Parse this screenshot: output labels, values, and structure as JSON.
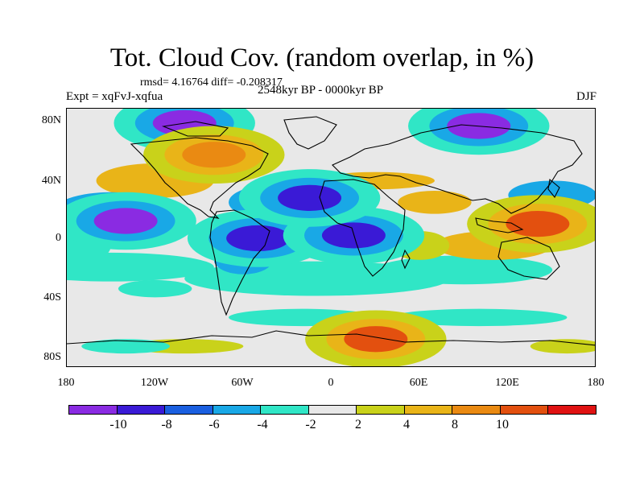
{
  "figure": {
    "title": "Tot. Cloud Cov. (random overlap, in %)",
    "stats": "rmsd= 4.16764 diff= -0.208317",
    "experiment": "Expt = xqFvJ-xqfua",
    "period": "2548kyr BP - 0000kyr BP",
    "season": "DJF"
  },
  "axes": {
    "y_ticks": [
      "80N",
      "40N",
      "0",
      "40S",
      "80S"
    ],
    "x_ticks": [
      "180",
      "120W",
      "60W",
      "0",
      "60E",
      "120E",
      "180"
    ]
  },
  "colorbar": {
    "labels": [
      "-10",
      "-8",
      "-6",
      "-4",
      "-2",
      "2",
      "4",
      "8",
      "10"
    ],
    "colors": [
      "#8a2be2",
      "#3a1ad6",
      "#1a5fe0",
      "#19a8e6",
      "#30e6c6",
      "#e8e8e8",
      "#c9d21a",
      "#e9b418",
      "#ea8a12",
      "#e3500f",
      "#e01212"
    ]
  },
  "chart_data": {
    "type": "heatmap",
    "title": "Tot. Cloud Cov. (random overlap, in %)",
    "subtitle": "rmsd= 4.16764 diff= -0.208317",
    "left_label": "Expt = xqFvJ-xqfua",
    "center_label": "2548kyr BP - 0000kyr BP",
    "right_label": "DJF",
    "xlim": [
      -180,
      180
    ],
    "ylim": [
      -90,
      90
    ],
    "x_ticks": [
      "180",
      "120W",
      "60W",
      "0",
      "60E",
      "120E",
      "180"
    ],
    "y_ticks": [
      "80N",
      "40N",
      "0",
      "40S",
      "80S"
    ],
    "levels": [
      -10,
      -8,
      -6,
      -4,
      -2,
      2,
      4,
      8,
      10
    ],
    "features": [
      {
        "lon": -140,
        "lat": 12,
        "value": -10
      },
      {
        "lon": -50,
        "lat": 0,
        "value": -8
      },
      {
        "lon": 15,
        "lat": 2,
        "value": -9
      },
      {
        "lon": 140,
        "lat": 10,
        "value": 11
      },
      {
        "lon": -100,
        "lat": 80,
        "value": -11
      },
      {
        "lon": 100,
        "lat": 78,
        "value": -10
      },
      {
        "lon": 30,
        "lat": -70,
        "value": 11
      },
      {
        "lon": -80,
        "lat": 58,
        "value": 10
      },
      {
        "lon": -15,
        "lat": 28,
        "value": -9
      }
    ]
  }
}
